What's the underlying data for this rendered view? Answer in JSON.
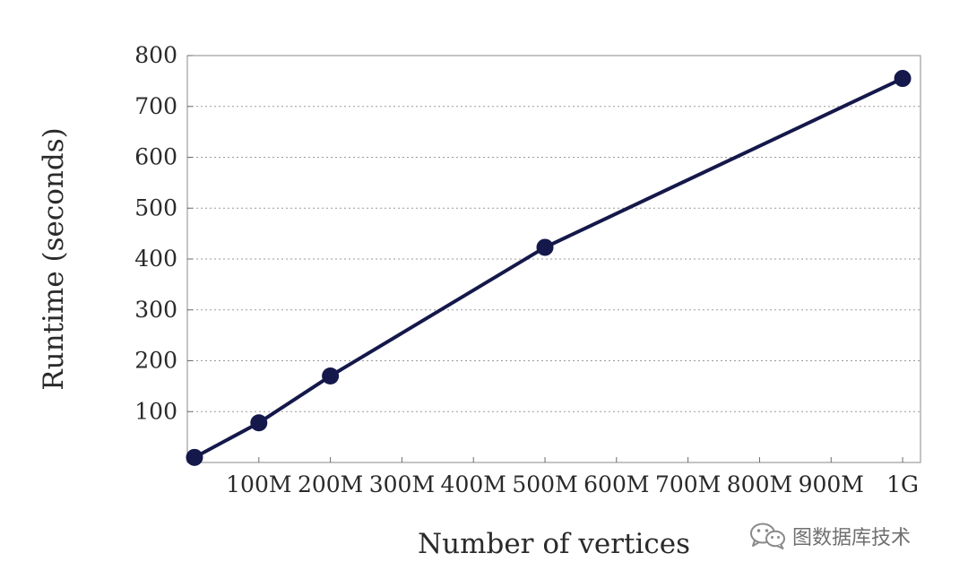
{
  "chart_data": {
    "type": "line",
    "title": "",
    "xlabel": "Number of vertices",
    "ylabel": "Runtime (seconds)",
    "xlim": [
      0,
      1025
    ],
    "ylim": [
      0,
      800
    ],
    "x_ticks": [
      {
        "value": 100,
        "label": "100M"
      },
      {
        "value": 200,
        "label": "200M"
      },
      {
        "value": 300,
        "label": "300M"
      },
      {
        "value": 400,
        "label": "400M"
      },
      {
        "value": 500,
        "label": "500M"
      },
      {
        "value": 600,
        "label": "600M"
      },
      {
        "value": 700,
        "label": "700M"
      },
      {
        "value": 800,
        "label": "800M"
      },
      {
        "value": 900,
        "label": "900M"
      },
      {
        "value": 1000,
        "label": "1G"
      }
    ],
    "y_ticks": [
      100,
      200,
      300,
      400,
      500,
      600,
      700,
      800
    ],
    "grid": "horizontal dotted",
    "legend": "none",
    "series": [
      {
        "color": "#14184a",
        "x": [
          10,
          100,
          200,
          500,
          1000
        ],
        "y": [
          10,
          78,
          170,
          423,
          755
        ]
      }
    ]
  },
  "watermark": {
    "text": "图数据库技术",
    "icon": "wechat-icon"
  }
}
